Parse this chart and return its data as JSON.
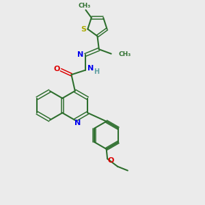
{
  "bg_color": "#ebebeb",
  "bond_color": "#2d6e2d",
  "n_color": "#0000ee",
  "o_color": "#dd0000",
  "s_color": "#aaaa00",
  "h_color": "#5f9ea0",
  "figsize": [
    3.0,
    3.0
  ],
  "dpi": 100,
  "xlim": [
    0,
    10
  ],
  "ylim": [
    0,
    10
  ]
}
